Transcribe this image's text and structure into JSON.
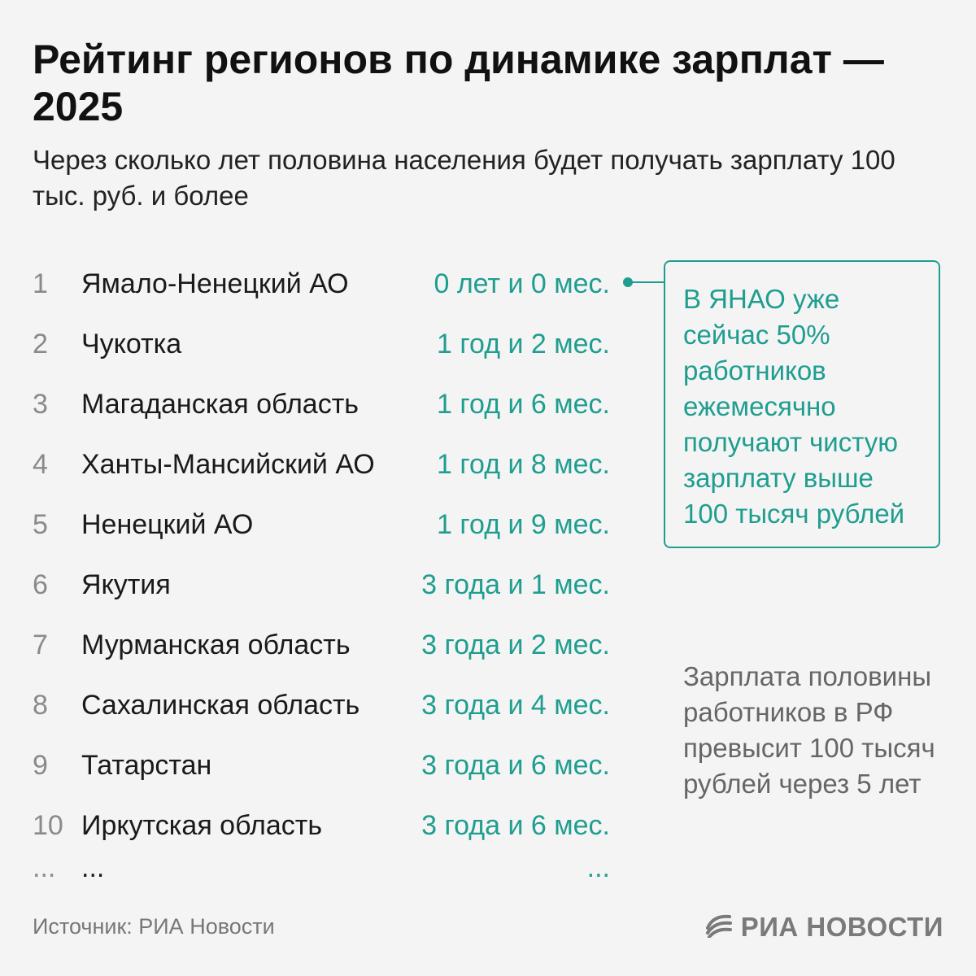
{
  "title": "Рейтинг регионов по динамике зарплат — 2025",
  "subtitle": "Через сколько лет половина населения будет получать зарплату 100 тыс. руб. и более",
  "ranking": [
    {
      "rank": "1",
      "region": "Ямало-Ненецкий АО",
      "value": "0 лет и 0 мес."
    },
    {
      "rank": "2",
      "region": "Чукотка",
      "value": "1 год и 2 мес."
    },
    {
      "rank": "3",
      "region": "Магаданская область",
      "value": "1 год и 6 мес."
    },
    {
      "rank": "4",
      "region": "Ханты-Мансийский АО",
      "value": "1 год и 8 мес."
    },
    {
      "rank": "5",
      "region": "Ненецкий АО",
      "value": "1 год и 9 мес."
    },
    {
      "rank": "6",
      "region": "Якутия",
      "value": "3 года и 1 мес."
    },
    {
      "rank": "7",
      "region": "Мурманская область",
      "value": "3 года и 2 мес."
    },
    {
      "rank": "8",
      "region": "Сахалинская область",
      "value": "3 года и 4 мес."
    },
    {
      "rank": "9",
      "region": "Татарстан",
      "value": "3 года и 6 мес."
    },
    {
      "rank": "10",
      "region": "Иркутская область",
      "value": "3 года и 6 мес."
    },
    {
      "rank": "...",
      "region": "...",
      "value": "..."
    }
  ],
  "callout": "В ЯНАО уже сейчас 50% работников ежемесячно получают чистую зарплату выше 100 тысяч рублей",
  "note": "Зарплата половины работников в РФ превысит 100 тысяч рублей через 5 лет",
  "source": "Источник: РИА Новости",
  "logo": {
    "text": "РИА НОВОСТИ",
    "icon": "ria-novosti-logo-icon"
  },
  "colors": {
    "accent": "#1f9e8f",
    "text": "#1a1a1a",
    "muted": "#8a8a8a",
    "background": "#f4f4f4"
  }
}
